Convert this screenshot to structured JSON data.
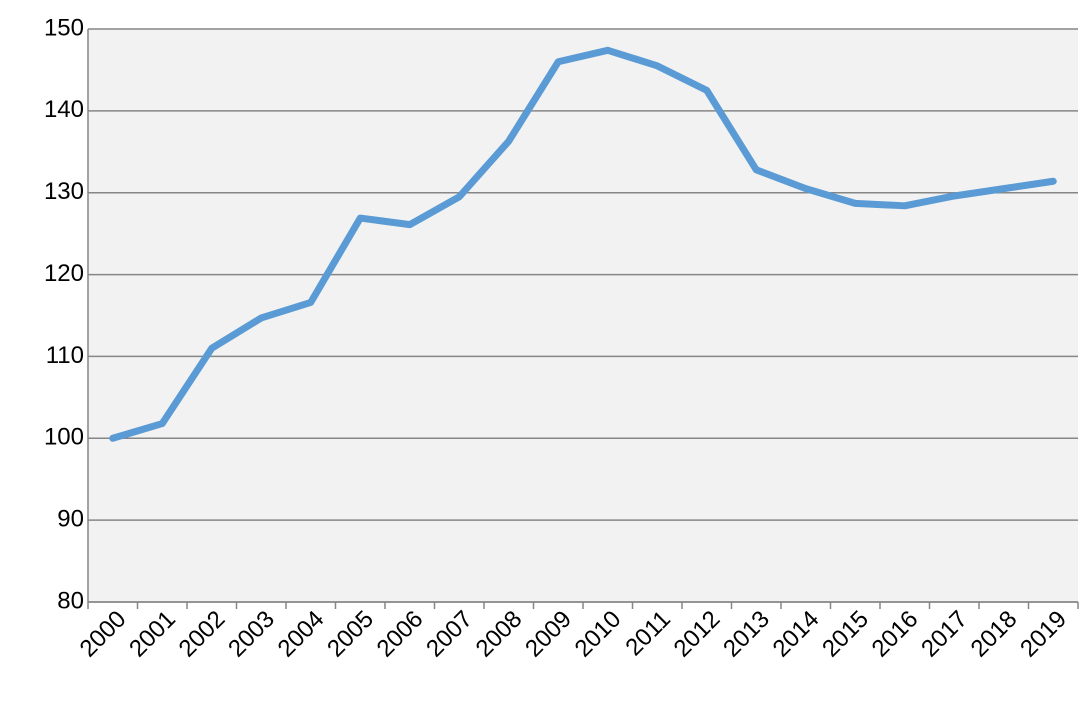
{
  "chart_data": {
    "type": "line",
    "categories": [
      "2000",
      "2001",
      "2002",
      "2003",
      "2004",
      "2005",
      "2006",
      "2007",
      "2008",
      "2009",
      "2010",
      "2011",
      "2012",
      "2013",
      "2014",
      "2015",
      "2016",
      "2017",
      "2018",
      "2019"
    ],
    "values": [
      100,
      101.8,
      111.0,
      114.7,
      116.6,
      126.9,
      126.1,
      129.5,
      136.3,
      146.0,
      147.4,
      145.5,
      142.5,
      132.8,
      130.5,
      128.7,
      128.4,
      129.6,
      130.5,
      131.4
    ],
    "color": "#5b9bd5",
    "ylim": [
      80,
      150
    ],
    "yticks": [
      80,
      90,
      100,
      110,
      120,
      130,
      140,
      150
    ],
    "grid": true
  }
}
